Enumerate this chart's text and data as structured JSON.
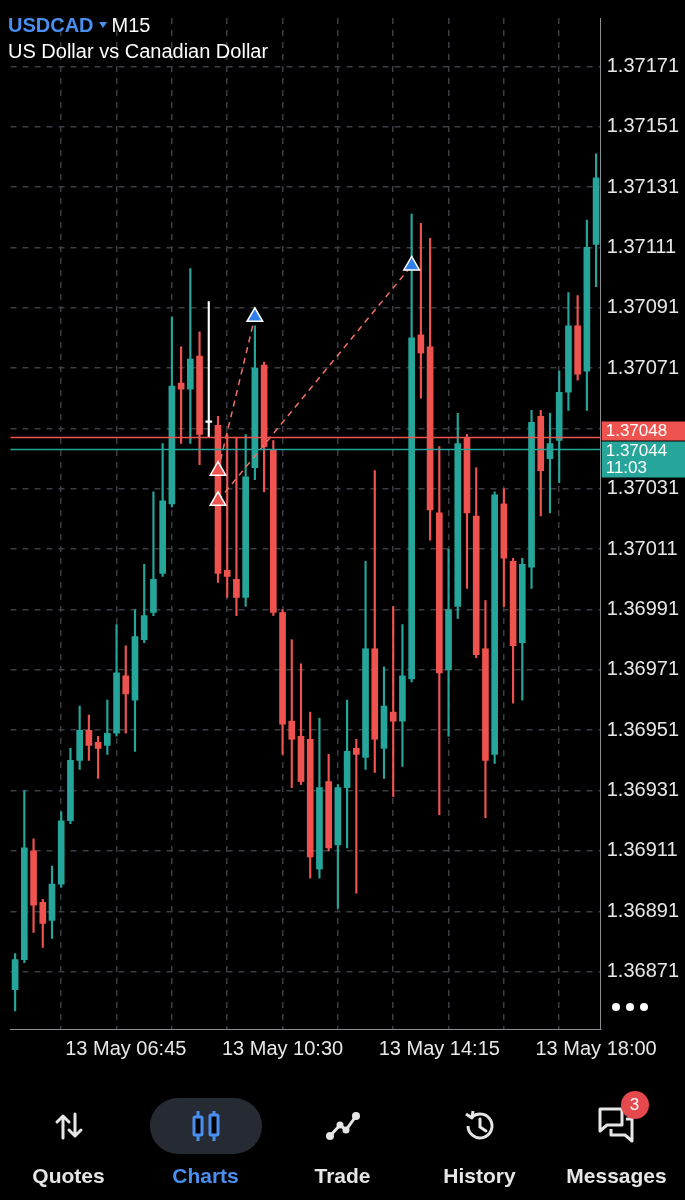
{
  "chart_data": {
    "type": "candlestick",
    "title": "USDCAD",
    "subtitle": "US Dollar vs Canadian Dollar",
    "annotations": [
      "M15",
      "11:03",
      "Quotes",
      "Charts",
      "Trade",
      "History",
      "Messages",
      "3"
    ],
    "categories": [
      null,
      null,
      null,
      null,
      null,
      null,
      null,
      null,
      null,
      null,
      null,
      null,
      "13 May 06:45",
      null,
      null,
      null,
      null,
      null,
      null,
      null,
      null,
      null,
      null,
      null,
      null,
      null,
      null,
      null,
      null,
      "13 May 10:30",
      null,
      null,
      null,
      null,
      null,
      null,
      null,
      null,
      null,
      null,
      null,
      null,
      null,
      null,
      null,
      null,
      "13 May 14:15",
      null,
      null,
      null,
      null,
      null,
      null,
      null,
      null,
      null,
      null,
      null,
      null,
      null,
      null,
      null,
      null,
      "13 May 18:00"
    ],
    "ohlc": [
      [
        1.36865,
        1.36877,
        1.36858,
        1.36875
      ],
      [
        1.36875,
        1.36931,
        1.36874,
        1.36912
      ],
      [
        1.36911,
        1.36915,
        1.36884,
        1.36893
      ],
      [
        1.36894,
        1.36895,
        1.36879,
        1.36887
      ],
      [
        1.36888,
        1.36906,
        1.36882,
        1.369
      ],
      [
        1.369,
        1.36924,
        1.36899,
        1.36921
      ],
      [
        1.36921,
        1.36945,
        1.3692,
        1.36941
      ],
      [
        1.36941,
        1.36959,
        1.36938,
        1.36951
      ],
      [
        1.36951,
        1.36956,
        1.36941,
        1.36946
      ],
      [
        1.36947,
        1.36949,
        1.36935,
        1.36945
      ],
      [
        1.36946,
        1.36961,
        1.36943,
        1.3695
      ],
      [
        1.3695,
        1.36986,
        1.36949,
        1.3697
      ],
      [
        1.36969,
        1.36979,
        1.3695,
        1.36963
      ],
      [
        1.36961,
        1.36991,
        1.36944,
        1.36982
      ],
      [
        1.36981,
        1.37006,
        1.3698,
        1.36989
      ],
      [
        1.3699,
        1.3703,
        1.36989,
        1.37001
      ],
      [
        1.37003,
        1.37046,
        1.37002,
        1.37027
      ],
      [
        1.37026,
        1.37088,
        1.37025,
        1.37065
      ],
      [
        1.37066,
        1.37078,
        1.37046,
        1.37064
      ],
      [
        1.37064,
        1.37104,
        1.37046,
        1.37074
      ],
      [
        1.37075,
        1.37083,
        1.37039,
        1.37049
      ],
      [
        1.37053,
        1.37093,
        1.37048,
        1.37053
      ],
      [
        1.37052,
        1.37055,
        1.37,
        1.37003
      ],
      [
        1.37004,
        1.37049,
        1.36995,
        1.37002
      ],
      [
        1.37001,
        1.37048,
        1.36989,
        1.36995
      ],
      [
        1.36995,
        1.37049,
        1.36992,
        1.37035
      ],
      [
        1.37038,
        1.37085,
        1.37034,
        1.37071
      ],
      [
        1.37072,
        1.37073,
        1.3703,
        1.37045
      ],
      [
        1.37044,
        1.37047,
        1.36989,
        1.3699
      ],
      [
        1.3699,
        1.36991,
        1.36943,
        1.36953
      ],
      [
        1.36954,
        1.36981,
        1.36932,
        1.36948
      ],
      [
        1.36949,
        1.36973,
        1.36933,
        1.36934
      ],
      [
        1.36948,
        1.36957,
        1.36902,
        1.36909
      ],
      [
        1.36905,
        1.36955,
        1.36902,
        1.36932
      ],
      [
        1.36934,
        1.36943,
        1.36911,
        1.36912
      ],
      [
        1.36913,
        1.36933,
        1.36892,
        1.36932
      ],
      [
        1.36932,
        1.36961,
        1.36912,
        1.36944
      ],
      [
        1.36945,
        1.36948,
        1.36897,
        1.36943
      ],
      [
        1.36942,
        1.37007,
        1.36938,
        1.36978
      ],
      [
        1.36978,
        1.37037,
        1.36937,
        1.36948
      ],
      [
        1.36945,
        1.36972,
        1.36935,
        1.36959
      ],
      [
        1.36957,
        1.36992,
        1.36929,
        1.36954
      ],
      [
        1.36954,
        1.36986,
        1.36939,
        1.36969
      ],
      [
        1.36968,
        1.37122,
        1.36967,
        1.37081
      ],
      [
        1.37082,
        1.37119,
        1.37061,
        1.37076
      ],
      [
        1.37078,
        1.37114,
        1.37014,
        1.37024
      ],
      [
        1.37023,
        1.37045,
        1.36923,
        1.3697
      ],
      [
        1.36971,
        1.37011,
        1.36949,
        1.36991
      ],
      [
        1.36992,
        1.37056,
        1.36988,
        1.37046
      ],
      [
        1.37048,
        1.37049,
        1.36998,
        1.37023
      ],
      [
        1.37022,
        1.37038,
        1.36975,
        1.36976
      ],
      [
        1.36978,
        1.36994,
        1.36922,
        1.36941
      ],
      [
        1.36943,
        1.3703,
        1.3694,
        1.37029
      ],
      [
        1.37026,
        1.37031,
        1.36992,
        1.37008
      ],
      [
        1.37007,
        1.37008,
        1.3696,
        1.36979
      ],
      [
        1.3698,
        1.37008,
        1.36961,
        1.37006
      ],
      [
        1.37005,
        1.37057,
        1.36998,
        1.37053
      ],
      [
        1.37055,
        1.37057,
        1.37022,
        1.37037
      ],
      [
        1.37041,
        1.37056,
        1.37023,
        1.37046
      ],
      [
        1.37047,
        1.3707,
        1.37033,
        1.37063
      ],
      [
        1.37063,
        1.37096,
        1.37057,
        1.37085
      ],
      [
        1.37085,
        1.37095,
        1.37067,
        1.37069
      ],
      [
        1.3707,
        1.3712,
        1.37057,
        1.37111
      ],
      [
        1.37112,
        1.37142,
        1.37098,
        1.37134
      ]
    ],
    "colors": [
      "#26a69a",
      "#26a69a",
      "#ef5350",
      "#ef5350",
      "#26a69a",
      "#26a69a",
      "#26a69a",
      "#26a69a",
      "#ef5350",
      "#ef5350",
      "#26a69a",
      "#26a69a",
      "#ef5350",
      "#26a69a",
      "#26a69a",
      "#26a69a",
      "#26a69a",
      "#26a69a",
      "#ef5350",
      "#26a69a",
      "#ef5350",
      "#ffffff",
      "#ef5350",
      "#ef5350",
      "#ef5350",
      "#26a69a",
      "#26a69a",
      "#ef5350",
      "#ef5350",
      "#ef5350",
      "#ef5350",
      "#ef5350",
      "#ef5350",
      "#26a69a",
      "#ef5350",
      "#26a69a",
      "#26a69a",
      "#ef5350",
      "#26a69a",
      "#ef5350",
      "#26a69a",
      "#ef5350",
      "#26a69a",
      "#26a69a",
      "#ef5350",
      "#ef5350",
      "#ef5350",
      "#26a69a",
      "#26a69a",
      "#ef5350",
      "#ef5350",
      "#ef5350",
      "#26a69a",
      "#ef5350",
      "#ef5350",
      "#26a69a",
      "#26a69a",
      "#ef5350",
      "#26a69a",
      "#26a69a",
      "#26a69a",
      "#ef5350",
      "#26a69a",
      "#26a69a"
    ],
    "series": [
      {
        "type": "line",
        "color": "#f07167",
        "line_style": "dashed",
        "marker": "triangle",
        "colors": [
          null,
          null,
          null,
          null,
          null,
          null,
          null,
          null,
          null,
          null,
          null,
          null,
          null,
          null,
          null,
          null,
          null,
          null,
          null,
          null,
          null,
          null,
          "#ef5350",
          null,
          null,
          null,
          "#2f80ed",
          null,
          null,
          null,
          null,
          null,
          null,
          null,
          null,
          null,
          null,
          null,
          null,
          null,
          null,
          null,
          null,
          null,
          null,
          null,
          null,
          null,
          null,
          null,
          null,
          null,
          null,
          null,
          null,
          null,
          null,
          null,
          null,
          null,
          null,
          null,
          null,
          null
        ],
        "values": [
          null,
          null,
          null,
          null,
          null,
          null,
          null,
          null,
          null,
          null,
          null,
          null,
          null,
          null,
          null,
          null,
          null,
          null,
          null,
          null,
          null,
          null,
          1.37037,
          null,
          null,
          null,
          1.37088,
          null,
          null,
          null,
          null,
          null,
          null,
          null,
          null,
          null,
          null,
          null,
          null,
          null,
          null,
          null,
          null,
          null,
          null,
          null,
          null,
          null,
          null,
          null,
          null,
          null,
          null,
          null,
          null,
          null,
          null,
          null,
          null,
          null,
          null,
          null,
          null,
          null
        ]
      },
      {
        "type": "line",
        "color": "#f07167",
        "line_style": "dashed",
        "marker": "triangle",
        "colors": [
          null,
          null,
          null,
          null,
          null,
          null,
          null,
          null,
          null,
          null,
          null,
          null,
          null,
          null,
          null,
          null,
          null,
          null,
          null,
          null,
          null,
          null,
          "#ef5350",
          null,
          null,
          null,
          null,
          null,
          null,
          null,
          null,
          null,
          null,
          null,
          null,
          null,
          null,
          null,
          null,
          null,
          null,
          null,
          null,
          "#2f80ed",
          null,
          null,
          null,
          null,
          null,
          null,
          null,
          null,
          null,
          null,
          null,
          null,
          null,
          null,
          null,
          null,
          null,
          null,
          null,
          null
        ],
        "values": [
          null,
          null,
          null,
          null,
          null,
          null,
          null,
          null,
          null,
          null,
          null,
          null,
          null,
          null,
          null,
          null,
          null,
          null,
          null,
          null,
          null,
          null,
          1.37027,
          null,
          null,
          null,
          null,
          null,
          null,
          null,
          null,
          null,
          null,
          null,
          null,
          null,
          null,
          null,
          null,
          null,
          null,
          null,
          null,
          1.37105,
          null,
          null,
          null,
          null,
          null,
          null,
          null,
          null,
          null,
          null,
          null,
          null,
          null,
          null,
          null,
          null,
          null,
          null,
          null,
          null
        ]
      }
    ],
    "ylim": [
      1.36852,
      1.37187
    ],
    "yticks": [
      1.36871,
      1.36891,
      1.36911,
      1.36931,
      1.36951,
      1.36971,
      1.36991,
      1.37011,
      1.37031,
      {
        "value": 1.37051,
        "label": null
      },
      1.37071,
      1.37091,
      1.37111,
      1.37131,
      1.37151,
      1.37171
    ],
    "grid": true,
    "ref_lines": [
      {
        "axis": "y",
        "value": 1.37048,
        "label": "1.37048",
        "color": "#ef5350"
      },
      {
        "axis": "y",
        "value": 1.37044,
        "label": "1.37044",
        "color": "#26a69a"
      }
    ]
  }
}
